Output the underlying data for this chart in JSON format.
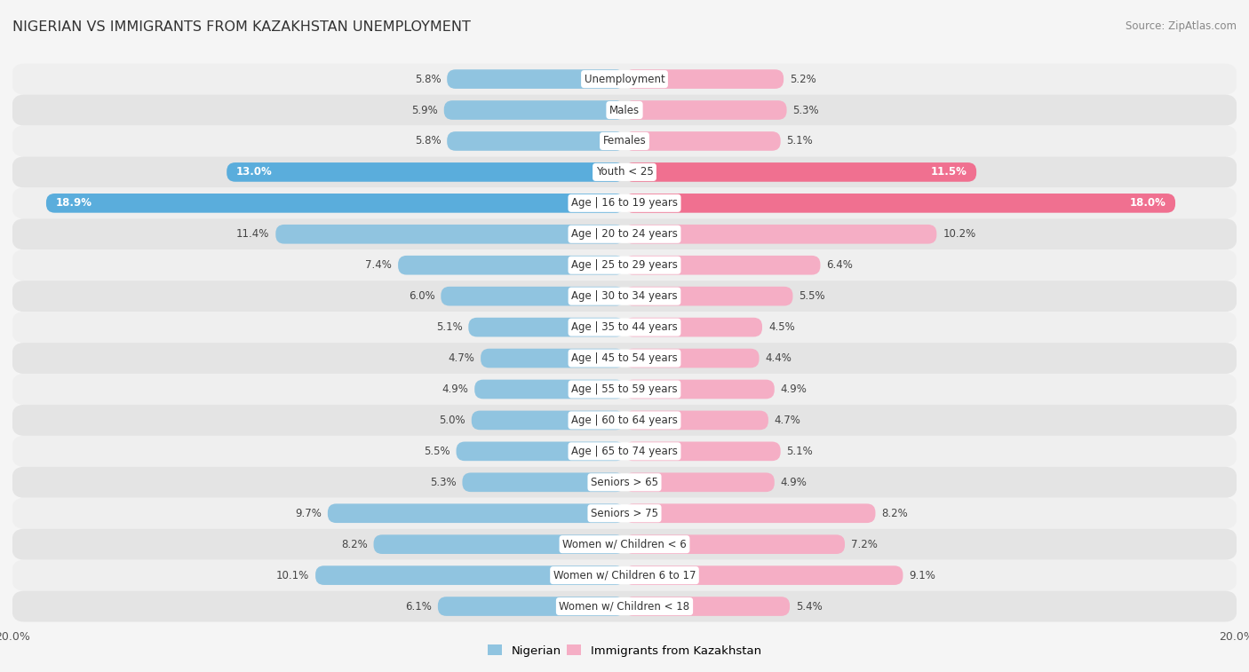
{
  "title": "NIGERIAN VS IMMIGRANTS FROM KAZAKHSTAN UNEMPLOYMENT",
  "source": "Source: ZipAtlas.com",
  "categories": [
    "Unemployment",
    "Males",
    "Females",
    "Youth < 25",
    "Age | 16 to 19 years",
    "Age | 20 to 24 years",
    "Age | 25 to 29 years",
    "Age | 30 to 34 years",
    "Age | 35 to 44 years",
    "Age | 45 to 54 years",
    "Age | 55 to 59 years",
    "Age | 60 to 64 years",
    "Age | 65 to 74 years",
    "Seniors > 65",
    "Seniors > 75",
    "Women w/ Children < 6",
    "Women w/ Children 6 to 17",
    "Women w/ Children < 18"
  ],
  "nigerian": [
    5.8,
    5.9,
    5.8,
    13.0,
    18.9,
    11.4,
    7.4,
    6.0,
    5.1,
    4.7,
    4.9,
    5.0,
    5.5,
    5.3,
    9.7,
    8.2,
    10.1,
    6.1
  ],
  "kazakhstan": [
    5.2,
    5.3,
    5.1,
    11.5,
    18.0,
    10.2,
    6.4,
    5.5,
    4.5,
    4.4,
    4.9,
    4.7,
    5.1,
    4.9,
    8.2,
    7.2,
    9.1,
    5.4
  ],
  "nigerian_color_normal": "#90c4e0",
  "nigerian_color_highlight": "#5aaddc",
  "kazakhstan_color_normal": "#f5aec5",
  "kazakhstan_color_highlight": "#f07090",
  "row_bg_color_even": "#efefef",
  "row_bg_color_odd": "#e4e4e4",
  "label_bg_color": "#ffffff",
  "max_val": 20.0,
  "legend_nigerian": "Nigerian",
  "legend_kazakhstan": "Immigrants from Kazakhstan",
  "fig_bg": "#f5f5f5"
}
